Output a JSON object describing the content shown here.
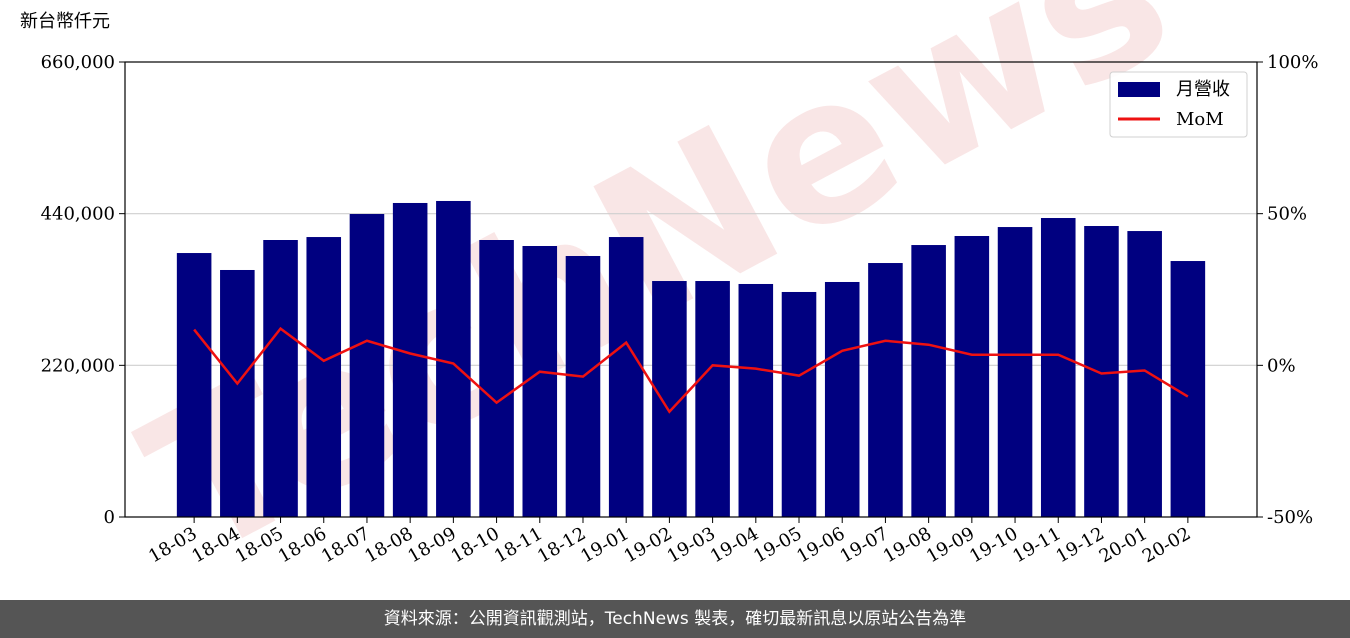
{
  "chart_data": {
    "type": "bar_line",
    "y_label": "新台幣仟元",
    "watermark": "TechNews",
    "categories": [
      "18-03",
      "18-04",
      "18-05",
      "18-06",
      "18-07",
      "18-08",
      "18-09",
      "18-10",
      "18-11",
      "18-12",
      "19-01",
      "19-02",
      "19-03",
      "19-04",
      "19-05",
      "19-06",
      "19-07",
      "19-08",
      "19-09",
      "19-10",
      "19-11",
      "19-12",
      "20-01",
      "20-02"
    ],
    "series": [
      {
        "name": "月營收",
        "type": "bar",
        "color": "#000080",
        "values": [
          382900,
          358300,
          401800,
          406100,
          439500,
          455500,
          458400,
          401800,
          393100,
          378600,
          406100,
          342300,
          342300,
          338000,
          326400,
          340900,
          368400,
          394500,
          407600,
          420600,
          433700,
          422100,
          414800,
          371300
        ]
      },
      {
        "name": "MoM",
        "type": "line",
        "axis": "y2",
        "color": "#ee1111",
        "values": [
          11.8,
          -6.0,
          12.1,
          1.5,
          8.1,
          3.9,
          0.6,
          -12.3,
          -2.1,
          -3.7,
          7.5,
          -15.3,
          0,
          -1.1,
          -3.4,
          4.8,
          8.1,
          6.8,
          3.5,
          3.5,
          3.5,
          -2.7,
          -1.7,
          -10.3
        ]
      }
    ],
    "ylim": [
      0,
      660000
    ],
    "yticks": [
      0,
      {
        "value": 220000,
        "label": "220,000"
      },
      {
        "value": 440000,
        "label": "440,000"
      },
      {
        "value": 660000,
        "label": "660,000"
      }
    ],
    "y2lim": [
      -50,
      100
    ],
    "y2ticks": [
      {
        "value": -50,
        "label": "-50%"
      },
      {
        "value": 0,
        "label": "0%"
      },
      {
        "value": 50,
        "label": "50%"
      },
      {
        "value": 100,
        "label": "100%"
      }
    ],
    "grid": true,
    "legend": "upper right"
  },
  "footer": "資料來源：公開資訊觀測站，TechNews 製表，確切最新訊息以原站公告為準"
}
